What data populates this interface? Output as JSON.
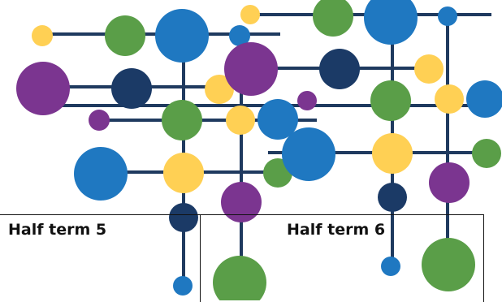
{
  "palette": {
    "line": "#1f3a5f",
    "yellow": "#ffd054",
    "green": "#5a9e48",
    "blue": "#1f78c1",
    "navy": "#1b3a66",
    "purple": "#7b3590",
    "frame": "#111111"
  },
  "terms": [
    {
      "label": "Half term 5"
    },
    {
      "label": "Half term 6"
    }
  ]
}
